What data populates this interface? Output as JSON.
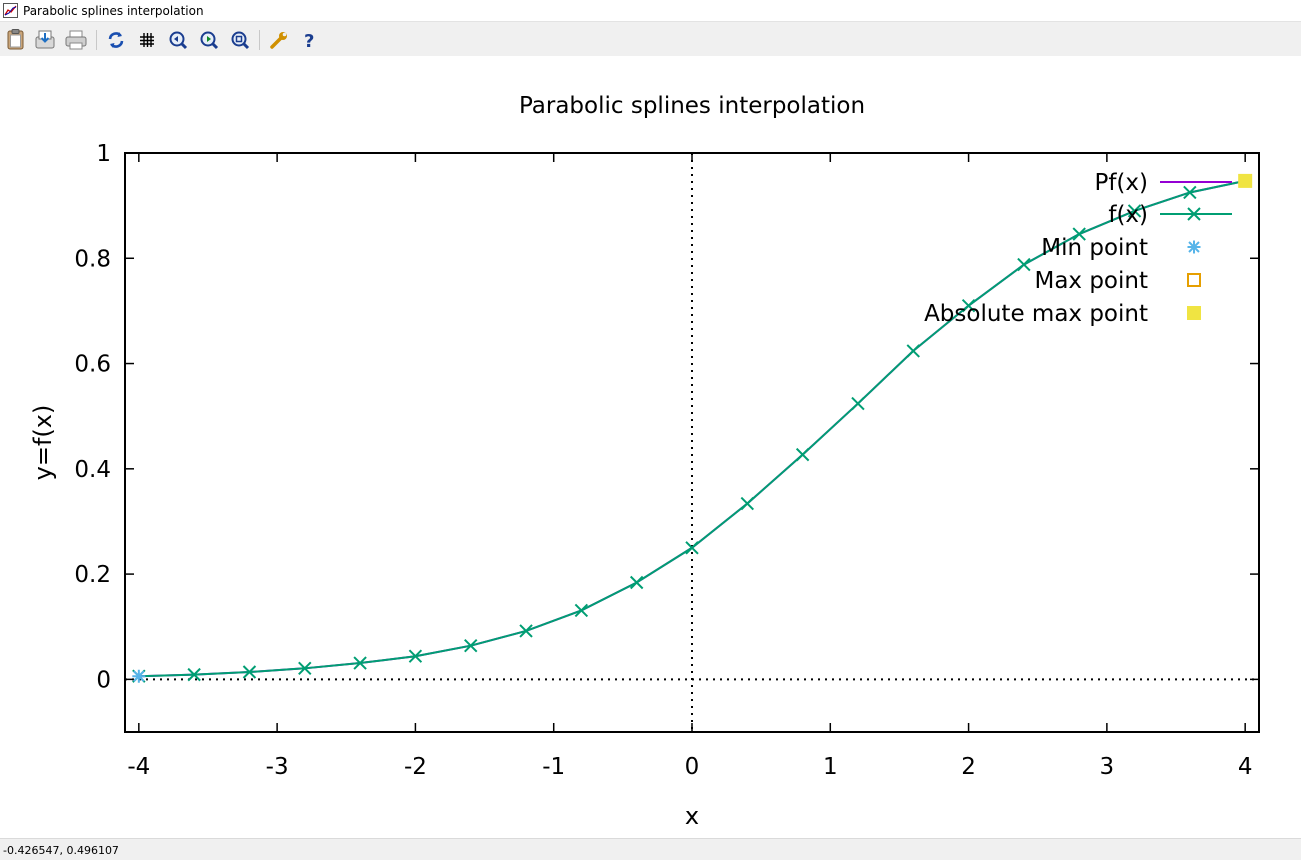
{
  "window": {
    "title": "Parabolic splines interpolation"
  },
  "toolbar": [
    {
      "name": "copy-to-clipboard-icon"
    },
    {
      "name": "export-icon"
    },
    {
      "name": "print-icon"
    },
    {
      "name": "replot-icon"
    },
    {
      "name": "grid-icon"
    },
    {
      "name": "zoom-previous-icon"
    },
    {
      "name": "zoom-next-icon"
    },
    {
      "name": "unzoom-icon"
    },
    {
      "name": "options-icon"
    },
    {
      "name": "help-icon"
    }
  ],
  "status": {
    "coords": "-0.426547,  0.496107"
  },
  "chart_data": {
    "type": "line",
    "title": "Parabolic splines interpolation",
    "xlabel": "x",
    "ylabel": "y=f(x)",
    "xlim": [
      -4.1,
      4.1
    ],
    "ylim": [
      -0.1,
      1
    ],
    "xticks": [
      -4,
      -3,
      -2,
      -1,
      0,
      1,
      2,
      3,
      4
    ],
    "xtick_labels": [
      "-4",
      "-3",
      "-2",
      "-1",
      "0",
      "1",
      "2",
      "3",
      "4"
    ],
    "yticks": [
      0,
      0.2,
      0.4,
      0.6,
      0.8,
      1
    ],
    "ytick_labels": [
      "0",
      "0.2",
      "0.4",
      "0.6",
      "0.8",
      "1"
    ],
    "zero_axes_dotted": true,
    "legend_position": "top-right",
    "colors": {
      "Pf": "#9400d3",
      "f": "#009e73",
      "min": "#56b4e9",
      "max": "#e69f00",
      "absmax": "#f0e442"
    },
    "series": [
      {
        "name": "Pf(x)",
        "style": "line",
        "x": [
          -4,
          -3.6,
          -3.2,
          -2.8,
          -2.4,
          -2,
          -1.6,
          -1.2,
          -0.8,
          -0.4,
          0,
          0.4,
          0.8,
          1.2,
          1.6,
          2,
          2.4,
          2.8,
          3.2,
          3.6,
          4
        ],
        "y": [
          0.006,
          0.009,
          0.014,
          0.021,
          0.031,
          0.044,
          0.064,
          0.092,
          0.131,
          0.184,
          0.25,
          0.334,
          0.427,
          0.524,
          0.624,
          0.71,
          0.788,
          0.846,
          0.89,
          0.925,
          0.947
        ]
      },
      {
        "name": "f(x)",
        "style": "linespoints",
        "x": [
          -4,
          -3.6,
          -3.2,
          -2.8,
          -2.4,
          -2,
          -1.6,
          -1.2,
          -0.8,
          -0.4,
          0,
          0.4,
          0.8,
          1.2,
          1.6,
          2,
          2.4,
          2.8,
          3.2,
          3.6,
          4
        ],
        "y": [
          0.006,
          0.009,
          0.014,
          0.021,
          0.031,
          0.044,
          0.064,
          0.092,
          0.131,
          0.184,
          0.25,
          0.334,
          0.427,
          0.524,
          0.624,
          0.71,
          0.788,
          0.846,
          0.89,
          0.925,
          0.947
        ]
      },
      {
        "name": "Min point",
        "style": "points",
        "x": [
          -4
        ],
        "y": [
          0.006
        ]
      },
      {
        "name": "Max point",
        "style": "points",
        "x": [],
        "y": []
      },
      {
        "name": "Absolute max point",
        "style": "points",
        "x": [
          4
        ],
        "y": [
          0.947
        ]
      }
    ]
  }
}
